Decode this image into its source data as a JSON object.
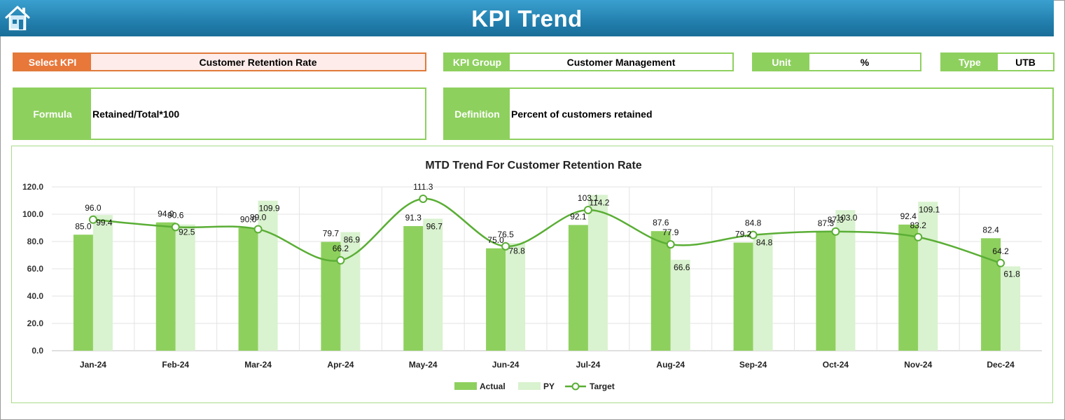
{
  "header": {
    "title": "KPI Trend",
    "home_icon": "home-icon"
  },
  "fields": {
    "select_kpi": {
      "label": "Select KPI",
      "value": "Customer Retention Rate"
    },
    "kpi_group": {
      "label": "KPI Group",
      "value": "Customer Management"
    },
    "unit": {
      "label": "Unit",
      "value": "%"
    },
    "type": {
      "label": "Type",
      "value": "UTB"
    },
    "formula": {
      "label": "Formula",
      "value": "Retained/Total*100"
    },
    "definition": {
      "label": "Definition",
      "value": "Percent of customers retained"
    }
  },
  "colors": {
    "actual": "#8ed05e",
    "py": "#d9f2cf",
    "target": "#5aae35",
    "header": "#2386b4",
    "select_label": "#e8773a"
  },
  "chart_data": {
    "type": "bar",
    "title": "MTD Trend For Customer Retention Rate",
    "categories": [
      "Jan-24",
      "Feb-24",
      "Mar-24",
      "Apr-24",
      "May-24",
      "Jun-24",
      "Jul-24",
      "Aug-24",
      "Sep-24",
      "Oct-24",
      "Nov-24",
      "Dec-24"
    ],
    "ylim": [
      0,
      120
    ],
    "yticks": [
      "0.0",
      "20.0",
      "40.0",
      "60.0",
      "80.0",
      "100.0",
      "120.0"
    ],
    "grid": true,
    "legend_position": "bottom",
    "series": [
      {
        "name": "Actual",
        "type": "bar",
        "values": [
          85.0,
          94.0,
          90.0,
          79.7,
          91.3,
          75.0,
          92.1,
          87.6,
          79.2,
          87.3,
          92.4,
          82.4
        ]
      },
      {
        "name": "PY",
        "type": "bar",
        "values": [
          99.4,
          92.5,
          109.9,
          86.9,
          96.7,
          78.8,
          114.2,
          66.6,
          84.8,
          103.0,
          109.1,
          61.8
        ]
      },
      {
        "name": "Target",
        "type": "line",
        "values": [
          96.0,
          90.6,
          89.0,
          66.2,
          111.3,
          76.5,
          103.1,
          77.9,
          84.8,
          87.3,
          83.2,
          64.2
        ]
      }
    ]
  }
}
